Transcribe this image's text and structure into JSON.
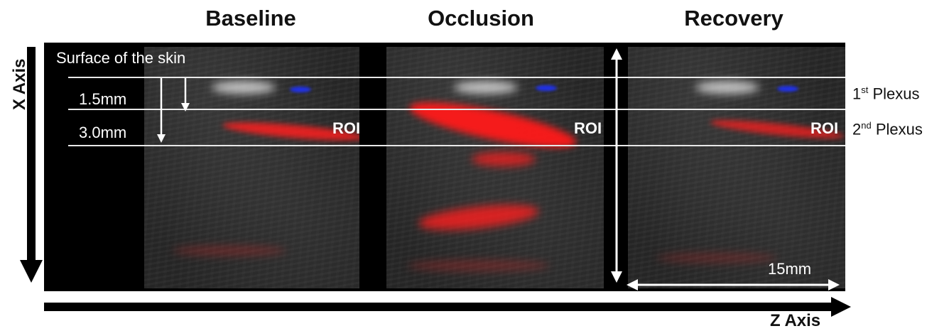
{
  "titles": {
    "baseline": "Baseline",
    "occlusion": "Occlusion",
    "recovery": "Recovery"
  },
  "annotations": {
    "surface": "Surface of the skin",
    "depth_1": "1.5mm",
    "depth_2": "3.0mm",
    "roi": "ROI",
    "scale": "15mm"
  },
  "plexus": {
    "first_base": "1",
    "first_sup": "st",
    "first_word": " Plexus",
    "second_base": "2",
    "second_sup": "nd",
    "second_word": " Plexus"
  },
  "axes": {
    "x": "X Axis",
    "z": "Z Axis"
  },
  "colors": {
    "flow": "#ff1a1a",
    "blue_flow": "#1a2cff",
    "frame": "#000000"
  }
}
